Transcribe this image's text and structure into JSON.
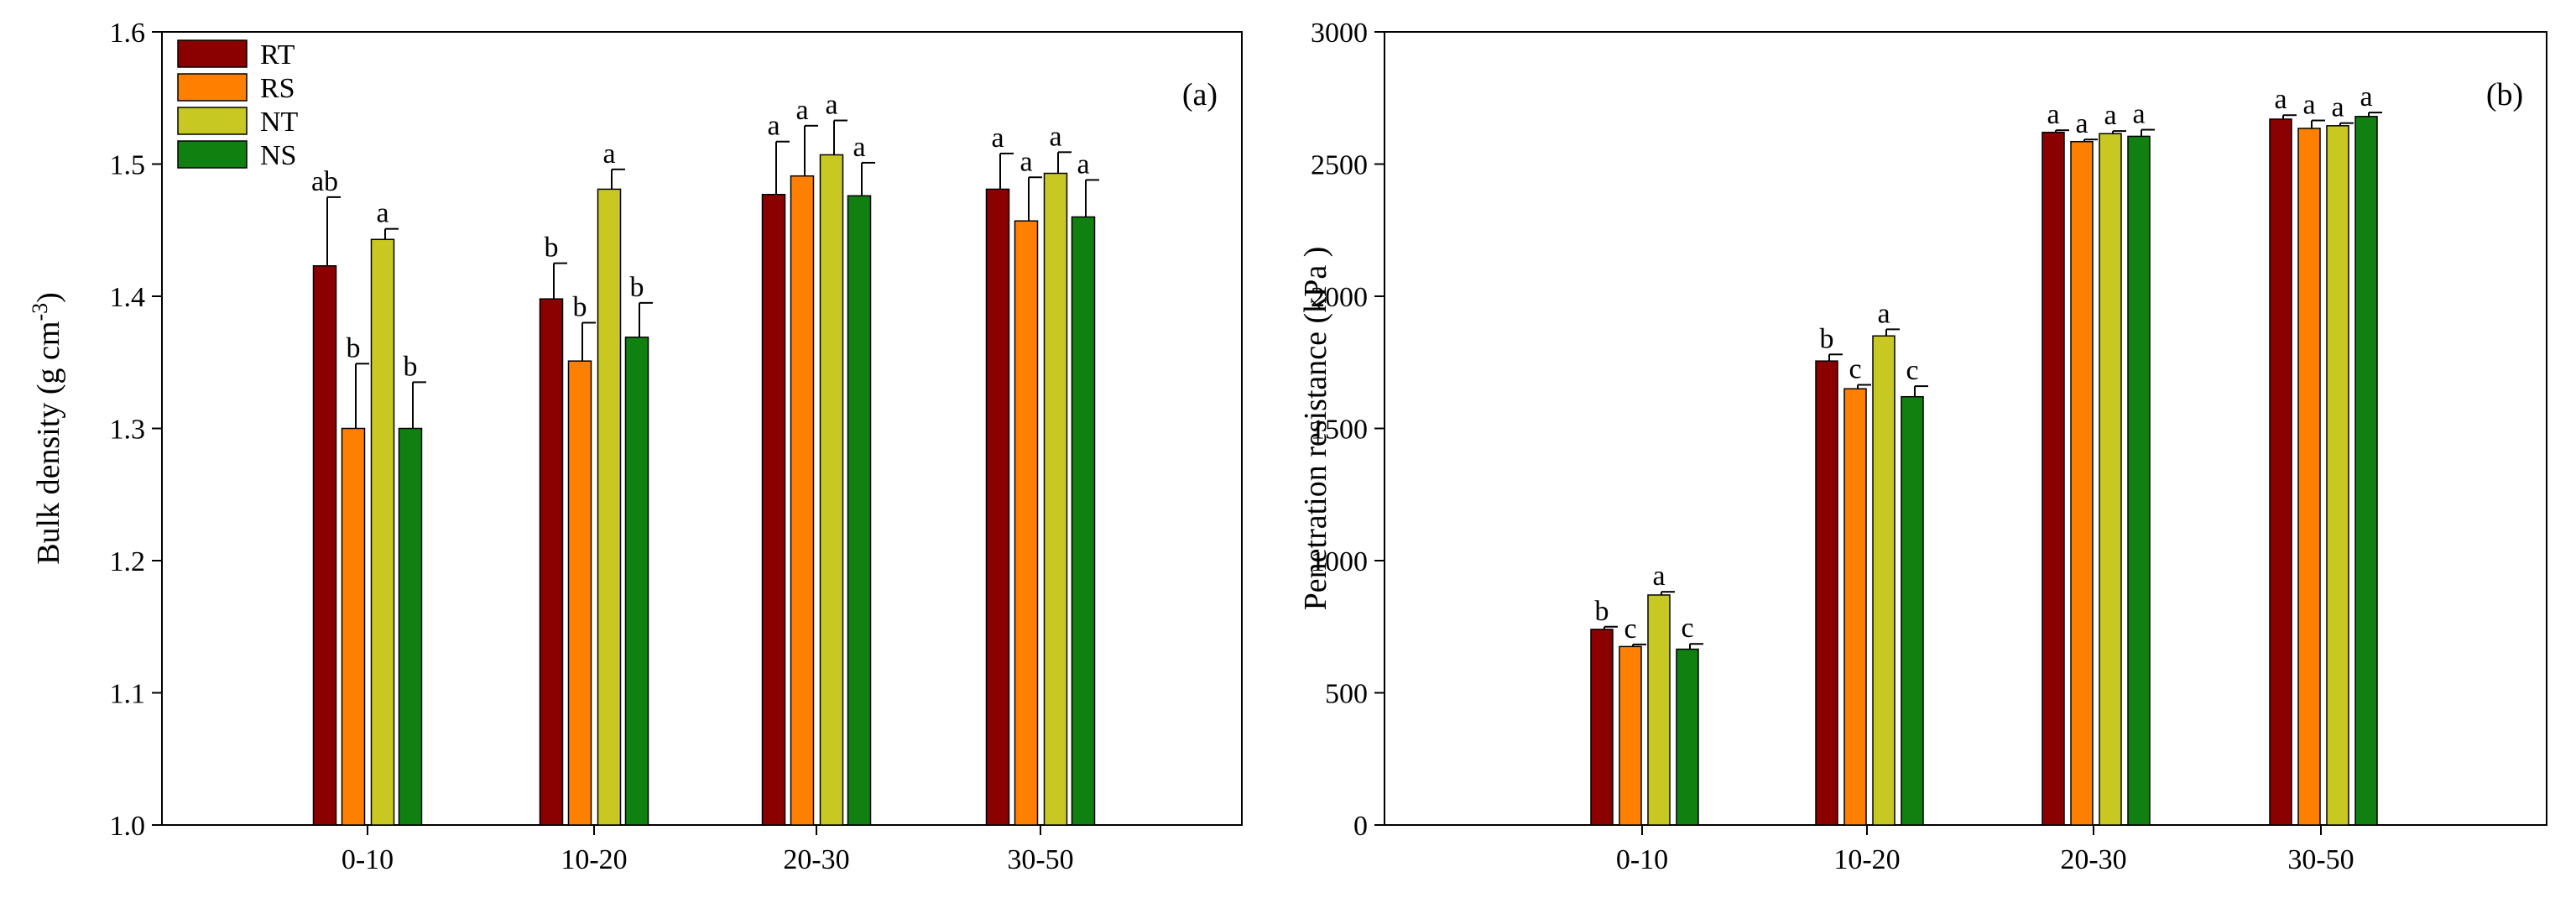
{
  "chart_data": [
    {
      "type": "bar",
      "panel_label": "(a)",
      "ylabel": "Bulk density (g cm",
      "ylabel_sup": "-3",
      "ylabel_close": ")",
      "xlabel": "",
      "ylim": [
        1.0,
        1.6
      ],
      "yticks": [
        "1.0",
        "1.1",
        "1.2",
        "1.3",
        "1.4",
        "1.5",
        "1.6"
      ],
      "ytick_values": [
        1.0,
        1.1,
        1.2,
        1.3,
        1.4,
        1.5,
        1.6
      ],
      "categories": [
        "0-10",
        "10-20",
        "20-30",
        "30-50"
      ],
      "legend": {
        "position": "top-left",
        "show": true
      },
      "series": [
        {
          "name": "RT",
          "color": "#8b0000",
          "values": [
            1.423,
            1.398,
            1.477,
            1.481
          ],
          "errors": [
            0.052,
            0.027,
            0.04,
            0.027
          ],
          "letters": [
            "ab",
            "b",
            "a",
            "a"
          ]
        },
        {
          "name": "RS",
          "color": "#ff8000",
          "values": [
            1.3,
            1.351,
            1.491,
            1.457
          ],
          "errors": [
            0.049,
            0.029,
            0.038,
            0.033
          ],
          "letters": [
            "b",
            "b",
            "a",
            "a"
          ]
        },
        {
          "name": "NT",
          "color": "#c8c822",
          "values": [
            1.443,
            1.481,
            1.507,
            1.493
          ],
          "errors": [
            0.008,
            0.015,
            0.026,
            0.016
          ],
          "letters": [
            "a",
            "a",
            "a",
            "a"
          ]
        },
        {
          "name": "NS",
          "color": "#108010",
          "values": [
            1.3,
            1.369,
            1.476,
            1.46
          ],
          "errors": [
            0.035,
            0.026,
            0.025,
            0.028
          ],
          "letters": [
            "b",
            "b",
            "a",
            "a"
          ]
        }
      ]
    },
    {
      "type": "bar",
      "panel_label": "(b)",
      "ylabel": "Penetration resistance (kPa )",
      "xlabel": "",
      "ylim": [
        0,
        3000
      ],
      "yticks": [
        "0",
        "500",
        "1000",
        "1500",
        "2000",
        "2500",
        "3000"
      ],
      "ytick_values": [
        0,
        500,
        1000,
        1500,
        2000,
        2500,
        3000
      ],
      "categories": [
        "0-10",
        "10-20",
        "20-30",
        "30-50"
      ],
      "legend": {
        "show": false
      },
      "series": [
        {
          "name": "RT",
          "color": "#8b0000",
          "values": [
            740,
            1755,
            2620,
            2670
          ],
          "errors": [
            10,
            25,
            8,
            15
          ],
          "letters": [
            "b",
            "b",
            "a",
            "a"
          ]
        },
        {
          "name": "RS",
          "color": "#ff8000",
          "values": [
            675,
            1650,
            2585,
            2635
          ],
          "errors": [
            8,
            15,
            8,
            30
          ],
          "letters": [
            "c",
            "c",
            "a",
            "a"
          ]
        },
        {
          "name": "NT",
          "color": "#c8c822",
          "values": [
            870,
            1850,
            2615,
            2645
          ],
          "errors": [
            12,
            25,
            10,
            10
          ],
          "letters": [
            "a",
            "a",
            "a",
            "a"
          ]
        },
        {
          "name": "NS",
          "color": "#108010",
          "values": [
            665,
            1620,
            2605,
            2680
          ],
          "errors": [
            20,
            40,
            25,
            15
          ],
          "letters": [
            "c",
            "c",
            "a",
            "a"
          ]
        }
      ]
    }
  ]
}
